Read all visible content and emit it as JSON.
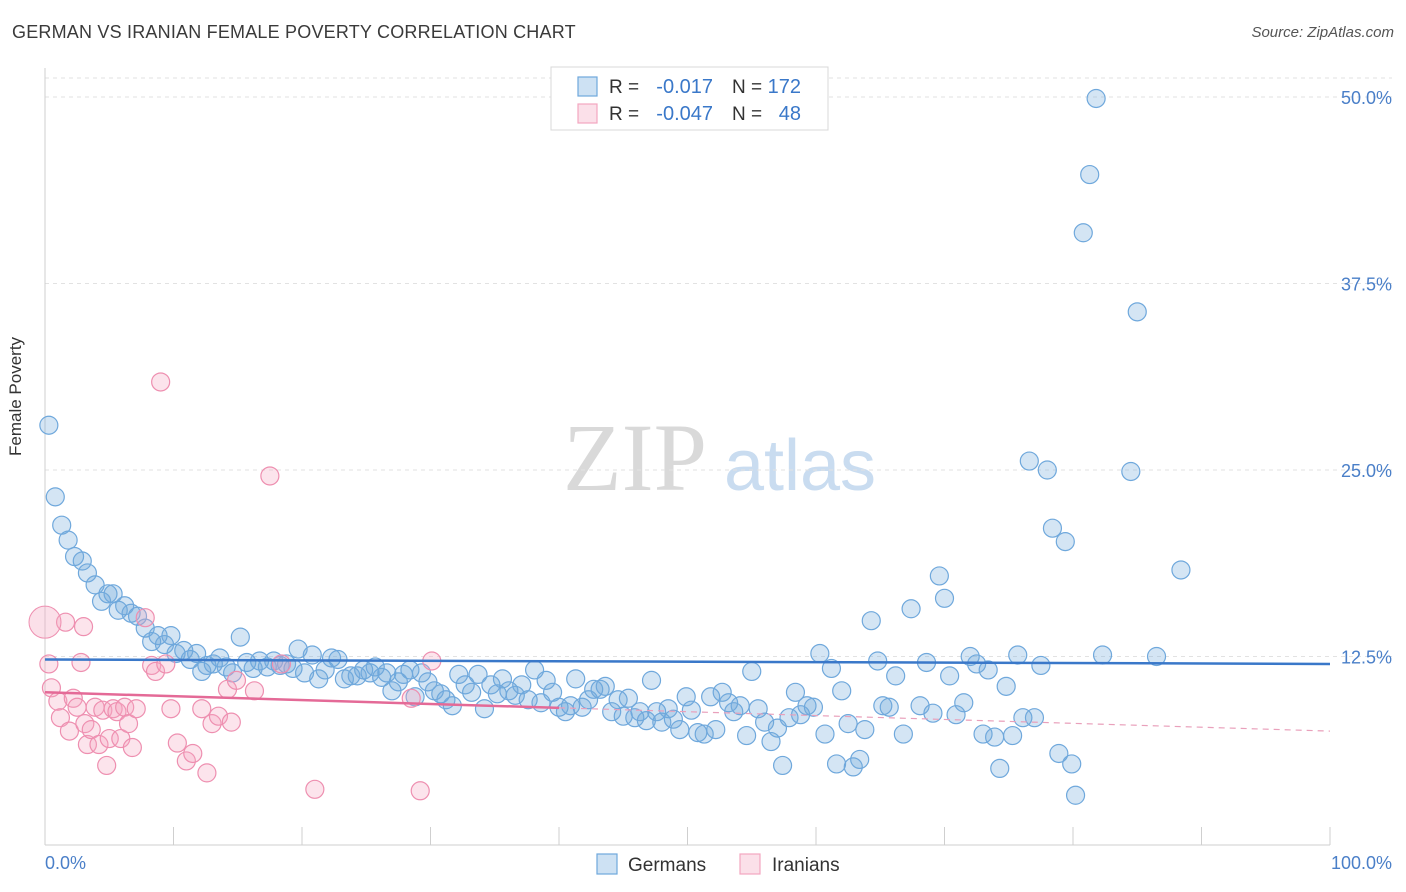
{
  "title": "GERMAN VS IRANIAN FEMALE POVERTY CORRELATION CHART",
  "source": "Source: ZipAtlas.com",
  "watermark": {
    "zip": "ZIP",
    "atlas": "atlas"
  },
  "legend_box": {
    "rows": [
      {
        "r_label": "R =",
        "r_value": "-0.017",
        "n_label": "N =",
        "n_value": "172",
        "color": "#6fa8dc"
      },
      {
        "r_label": "R =",
        "r_value": "-0.047",
        "n_label": "N =",
        "n_value": "48",
        "color": "#f4a6c0"
      }
    ]
  },
  "chart_data": {
    "type": "scatter",
    "xlabel": "",
    "ylabel": "Female Poverty",
    "xlim": [
      0,
      100
    ],
    "ylim": [
      0,
      50
    ],
    "x_tick_labels": [
      "0.0%",
      "100.0%"
    ],
    "y_tick_labels": [
      "12.5%",
      "25.0%",
      "37.5%",
      "50.0%"
    ],
    "y_ticks": [
      12.5,
      25,
      37.5,
      50
    ],
    "grid": true,
    "legend": "bottom-center",
    "series": [
      {
        "name": "Germans",
        "color": "#6fa8dc",
        "trend": {
          "x": [
            0,
            100
          ],
          "y": [
            12.3,
            12.0
          ]
        },
        "points": [
          [
            0.3,
            28
          ],
          [
            0.8,
            23.2
          ],
          [
            1.3,
            21.3
          ],
          [
            1.8,
            20.3
          ],
          [
            2.3,
            19.2
          ],
          [
            2.9,
            18.9
          ],
          [
            3.3,
            18.1
          ],
          [
            3.9,
            17.3
          ],
          [
            4.4,
            16.2
          ],
          [
            4.9,
            16.7
          ],
          [
            5.3,
            16.7
          ],
          [
            5.7,
            15.6
          ],
          [
            6.2,
            15.9
          ],
          [
            6.7,
            15.4
          ],
          [
            7.2,
            15.2
          ],
          [
            7.8,
            14.4
          ],
          [
            8.3,
            13.5
          ],
          [
            8.8,
            13.9
          ],
          [
            9.3,
            13.3
          ],
          [
            9.8,
            13.9
          ],
          [
            10.2,
            12.7
          ],
          [
            10.8,
            12.9
          ],
          [
            11.3,
            12.3
          ],
          [
            11.8,
            12.7
          ],
          [
            12.2,
            11.5
          ],
          [
            12.6,
            11.9
          ],
          [
            13.1,
            12.0
          ],
          [
            13.6,
            12.4
          ],
          [
            14.1,
            11.8
          ],
          [
            14.6,
            11.4
          ],
          [
            15.2,
            13.8
          ],
          [
            15.7,
            12.1
          ],
          [
            16.2,
            11.7
          ],
          [
            16.7,
            12.2
          ],
          [
            17.3,
            11.8
          ],
          [
            17.8,
            12.2
          ],
          [
            18.3,
            11.9
          ],
          [
            18.8,
            12.0
          ],
          [
            19.3,
            11.7
          ],
          [
            19.7,
            13.0
          ],
          [
            20.2,
            11.4
          ],
          [
            20.8,
            12.6
          ],
          [
            21.3,
            11.0
          ],
          [
            21.8,
            11.6
          ],
          [
            22.3,
            12.4
          ],
          [
            22.8,
            12.3
          ],
          [
            23.3,
            11.0
          ],
          [
            23.8,
            11.2
          ],
          [
            24.3,
            11.2
          ],
          [
            24.8,
            11.6
          ],
          [
            25.3,
            11.4
          ],
          [
            25.7,
            11.8
          ],
          [
            26.2,
            11.1
          ],
          [
            26.6,
            11.4
          ],
          [
            27.0,
            10.2
          ],
          [
            27.5,
            10.8
          ],
          [
            27.9,
            11.3
          ],
          [
            28.4,
            11.6
          ],
          [
            28.8,
            9.8
          ],
          [
            29.3,
            11.4
          ],
          [
            29.8,
            10.8
          ],
          [
            30.3,
            10.2
          ],
          [
            30.8,
            10.0
          ],
          [
            31.2,
            9.6
          ],
          [
            31.7,
            9.2
          ],
          [
            32.2,
            11.3
          ],
          [
            32.7,
            10.6
          ],
          [
            33.2,
            10.1
          ],
          [
            33.7,
            11.3
          ],
          [
            34.2,
            9.0
          ],
          [
            34.7,
            10.6
          ],
          [
            35.2,
            10.0
          ],
          [
            35.6,
            11.0
          ],
          [
            36.1,
            10.2
          ],
          [
            36.6,
            9.9
          ],
          [
            37.1,
            10.6
          ],
          [
            37.6,
            9.6
          ],
          [
            38.1,
            11.6
          ],
          [
            38.6,
            9.4
          ],
          [
            39.0,
            10.9
          ],
          [
            39.5,
            10.1
          ],
          [
            40.0,
            9.1
          ],
          [
            40.5,
            8.8
          ],
          [
            40.9,
            9.2
          ],
          [
            41.3,
            11.0
          ],
          [
            41.8,
            9.1
          ],
          [
            42.3,
            9.6
          ],
          [
            42.7,
            10.3
          ],
          [
            43.2,
            10.3
          ],
          [
            43.6,
            10.5
          ],
          [
            44.1,
            8.8
          ],
          [
            44.6,
            9.6
          ],
          [
            45.0,
            8.5
          ],
          [
            45.4,
            9.7
          ],
          [
            45.9,
            8.4
          ],
          [
            46.3,
            8.8
          ],
          [
            46.8,
            8.2
          ],
          [
            47.2,
            10.9
          ],
          [
            47.6,
            8.8
          ],
          [
            48.0,
            8.1
          ],
          [
            48.5,
            9.0
          ],
          [
            48.9,
            8.3
          ],
          [
            49.4,
            7.6
          ],
          [
            49.9,
            9.8
          ],
          [
            50.3,
            8.9
          ],
          [
            50.8,
            7.4
          ],
          [
            51.3,
            7.3
          ],
          [
            51.8,
            9.8
          ],
          [
            52.2,
            7.6
          ],
          [
            52.7,
            10.1
          ],
          [
            53.2,
            9.4
          ],
          [
            53.6,
            8.8
          ],
          [
            54.1,
            9.2
          ],
          [
            54.6,
            7.2
          ],
          [
            55.0,
            11.5
          ],
          [
            55.5,
            9.0
          ],
          [
            56.0,
            8.1
          ],
          [
            56.5,
            6.8
          ],
          [
            57.0,
            7.7
          ],
          [
            57.4,
            5.2
          ],
          [
            57.9,
            8.4
          ],
          [
            58.4,
            10.1
          ],
          [
            58.8,
            8.6
          ],
          [
            59.3,
            9.2
          ],
          [
            59.8,
            9.1
          ],
          [
            60.3,
            12.7
          ],
          [
            60.7,
            7.3
          ],
          [
            61.2,
            11.7
          ],
          [
            61.6,
            5.3
          ],
          [
            62.0,
            10.2
          ],
          [
            62.5,
            8.0
          ],
          [
            62.9,
            5.1
          ],
          [
            63.4,
            5.6
          ],
          [
            63.8,
            7.6
          ],
          [
            64.3,
            14.9
          ],
          [
            64.8,
            12.2
          ],
          [
            65.2,
            9.2
          ],
          [
            65.7,
            9.1
          ],
          [
            66.2,
            11.2
          ],
          [
            66.8,
            7.3
          ],
          [
            67.4,
            15.7
          ],
          [
            68.1,
            9.2
          ],
          [
            68.6,
            12.1
          ],
          [
            69.1,
            8.7
          ],
          [
            69.6,
            17.9
          ],
          [
            70.0,
            16.4
          ],
          [
            70.4,
            11.2
          ],
          [
            70.9,
            8.6
          ],
          [
            71.5,
            9.4
          ],
          [
            72.0,
            12.5
          ],
          [
            72.5,
            12.0
          ],
          [
            73.0,
            7.3
          ],
          [
            73.4,
            11.6
          ],
          [
            73.9,
            7.1
          ],
          [
            74.3,
            5.0
          ],
          [
            74.8,
            10.5
          ],
          [
            75.3,
            7.2
          ],
          [
            75.7,
            12.6
          ],
          [
            76.1,
            8.4
          ],
          [
            76.6,
            25.6
          ],
          [
            77.0,
            8.4
          ],
          [
            77.5,
            11.9
          ],
          [
            78.0,
            25.0
          ],
          [
            78.4,
            21.1
          ],
          [
            78.9,
            6.0
          ],
          [
            79.4,
            20.2
          ],
          [
            79.9,
            5.3
          ],
          [
            80.2,
            3.2
          ],
          [
            80.8,
            40.9
          ],
          [
            81.3,
            44.8
          ],
          [
            81.8,
            49.9
          ],
          [
            82.3,
            12.6
          ],
          [
            84.5,
            24.9
          ],
          [
            85.0,
            35.6
          ],
          [
            86.5,
            12.5
          ],
          [
            88.4,
            18.3
          ]
        ]
      },
      {
        "name": "Iranians",
        "color": "#f4a6c0",
        "trend": {
          "x": [
            0,
            100
          ],
          "y": [
            10.1,
            7.5
          ]
        },
        "trend_solid_to": 40,
        "points": [
          [
            0.3,
            12.0
          ],
          [
            0.5,
            10.4
          ],
          [
            1.0,
            9.5
          ],
          [
            1.2,
            8.4
          ],
          [
            1.6,
            14.8
          ],
          [
            1.9,
            7.5
          ],
          [
            2.2,
            9.7
          ],
          [
            2.5,
            9.1
          ],
          [
            2.8,
            12.1
          ],
          [
            3.1,
            8.0
          ],
          [
            3.3,
            6.6
          ],
          [
            3.6,
            7.6
          ],
          [
            3.9,
            9.1
          ],
          [
            4.2,
            6.6
          ],
          [
            4.5,
            8.9
          ],
          [
            4.8,
            5.2
          ],
          [
            5.0,
            7.0
          ],
          [
            5.3,
            9.0
          ],
          [
            5.6,
            8.8
          ],
          [
            5.9,
            7.0
          ],
          [
            6.2,
            9.1
          ],
          [
            6.5,
            8.0
          ],
          [
            6.8,
            6.4
          ],
          [
            7.1,
            9.0
          ],
          [
            7.8,
            15.1
          ],
          [
            8.3,
            11.9
          ],
          [
            8.6,
            11.5
          ],
          [
            9.0,
            30.9
          ],
          [
            9.4,
            12.0
          ],
          [
            9.8,
            9.0
          ],
          [
            10.3,
            6.7
          ],
          [
            11.0,
            5.5
          ],
          [
            11.5,
            6.0
          ],
          [
            12.2,
            9.0
          ],
          [
            12.6,
            4.7
          ],
          [
            13.0,
            8.0
          ],
          [
            13.5,
            8.5
          ],
          [
            14.2,
            10.3
          ],
          [
            14.5,
            8.1
          ],
          [
            14.9,
            10.9
          ],
          [
            16.3,
            10.2
          ],
          [
            17.5,
            24.6
          ],
          [
            18.4,
            12.0
          ],
          [
            21.0,
            3.6
          ],
          [
            28.5,
            9.7
          ],
          [
            29.2,
            3.5
          ],
          [
            30.1,
            12.2
          ],
          [
            3.0,
            14.5
          ]
        ]
      }
    ]
  },
  "bottom_legend": [
    {
      "label": "Germans",
      "color": "#6fa8dc"
    },
    {
      "label": "Iranians",
      "color": "#f4a6c0"
    }
  ]
}
